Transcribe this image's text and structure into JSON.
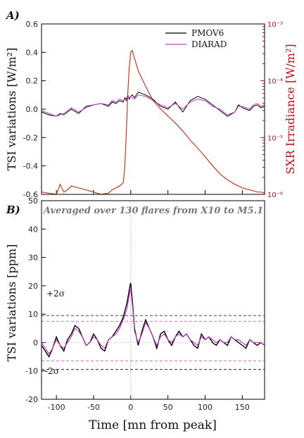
{
  "chart_data": [
    {
      "panel_label": "A)",
      "type": "line",
      "x": [
        -120,
        -110,
        -100,
        -95,
        -90,
        -85,
        -80,
        -70,
        -60,
        -50,
        -40,
        -30,
        -25,
        -20,
        -15,
        -10,
        -8,
        -6,
        -4,
        -2,
        0,
        2,
        5,
        10,
        20,
        30,
        40,
        50,
        60,
        70,
        80,
        90,
        100,
        110,
        120,
        130,
        140,
        145,
        150,
        155,
        160,
        165,
        170,
        175,
        180
      ],
      "series": [
        {
          "name": "PMOV6",
          "axis": "left",
          "color": "#000000",
          "values": [
            -0.02,
            -0.04,
            -0.05,
            -0.03,
            -0.04,
            -0.02,
            0.0,
            -0.03,
            0.02,
            0.03,
            0.04,
            0.02,
            0.05,
            0.04,
            0.06,
            0.05,
            0.08,
            0.06,
            0.1,
            0.07,
            0.09,
            0.1,
            0.08,
            0.12,
            0.1,
            0.07,
            0.02,
            0.0,
            0.05,
            -0.02,
            0.06,
            0.09,
            0.07,
            0.03,
            -0.01,
            -0.05,
            -0.02,
            0.03,
            0.01,
            0.0,
            -0.01,
            0.02,
            0.03,
            0.01,
            0.02
          ]
        },
        {
          "name": "DIARAD",
          "axis": "left",
          "color": "#c040c0",
          "values": [
            -0.01,
            -0.03,
            -0.05,
            -0.04,
            -0.03,
            -0.01,
            0.01,
            -0.02,
            0.01,
            0.03,
            0.04,
            0.03,
            0.06,
            0.05,
            0.07,
            0.06,
            0.07,
            0.08,
            0.09,
            0.08,
            0.09,
            0.08,
            0.07,
            0.1,
            0.09,
            0.06,
            0.03,
            0.01,
            0.04,
            0.0,
            0.05,
            0.07,
            0.06,
            0.02,
            0.0,
            -0.04,
            -0.02,
            0.02,
            0.02,
            0.01,
            0.0,
            0.03,
            0.04,
            0.02,
            0.03
          ]
        },
        {
          "name": "",
          "axis": "right",
          "color": "#c0392b",
          "values": [
            1.1e-06,
            1.05e-06,
            1e-06,
            1.5e-06,
            1.1e-06,
            1.2e-06,
            1.4e-06,
            1.3e-06,
            1.2e-06,
            1.1e-06,
            1e-06,
            1.05e-06,
            1.2e-06,
            1.3e-06,
            1.4e-06,
            1.6e-06,
            3e-06,
            1.2e-05,
            6e-05,
            0.00017,
            0.00032,
            0.00034,
            0.00025,
            0.00015,
            8e-05,
            4.5e-05,
            3.2e-05,
            2.4e-05,
            1.8e-05,
            1.3e-05,
            9e-06,
            6.5e-06,
            4.6e-06,
            3.2e-06,
            2.3e-06,
            1.8e-06,
            1.5e-06,
            1.4e-06,
            1.3e-06,
            1.25e-06,
            1.2e-06,
            1.15e-06,
            1.1e-06,
            1.1e-06,
            1.05e-06
          ]
        }
      ],
      "xlim": [
        -120,
        180
      ],
      "ylim": [
        -0.6,
        0.6
      ],
      "y2lim": [
        1e-06,
        0.001
      ],
      "y2scale": "log",
      "yticks": [
        "-0.6",
        "-0.4",
        "-0.2",
        "0.0",
        "0.2",
        "0.4",
        "0.6"
      ],
      "y2ticks": [
        "10⁻⁶",
        "10⁻⁵",
        "10⁻⁴",
        "10⁻³"
      ],
      "ylabel": "TSI variations [W/m²]",
      "y2label": "SXR Irradiance [W/m²]",
      "legend": [
        "PMOV6",
        "DIARAD"
      ],
      "legend_position": "top-right"
    },
    {
      "panel_label": "B)",
      "type": "line",
      "annotation": "Averaged over 130 flares from X10 to M5.1",
      "x": [
        -120,
        -115,
        -110,
        -105,
        -100,
        -95,
        -90,
        -85,
        -80,
        -75,
        -70,
        -65,
        -60,
        -55,
        -50,
        -45,
        -40,
        -35,
        -30,
        -25,
        -20,
        -15,
        -10,
        -5,
        -3,
        -1,
        0,
        1,
        3,
        5,
        10,
        15,
        20,
        25,
        30,
        35,
        40,
        45,
        50,
        55,
        60,
        65,
        70,
        75,
        80,
        85,
        90,
        95,
        100,
        105,
        110,
        115,
        120,
        125,
        130,
        135,
        140,
        145,
        150,
        155,
        160,
        165,
        170,
        175,
        180
      ],
      "series": [
        {
          "name": "PMOV6",
          "color": "#000000",
          "values": [
            -1,
            -3,
            -5,
            -2,
            2,
            -1,
            -3,
            1,
            3,
            6,
            5,
            2,
            -1,
            0,
            3,
            1,
            -2,
            -3,
            1,
            2,
            4,
            6,
            9,
            14,
            17,
            20,
            21,
            18,
            12,
            5,
            -1,
            4,
            8,
            5,
            2,
            -2,
            3,
            4,
            1,
            -1,
            2,
            4,
            2,
            3,
            1,
            -1,
            -2,
            3,
            1,
            2,
            0,
            -1,
            1,
            0,
            -1,
            2,
            1,
            0,
            -1,
            -2,
            1,
            0,
            -1,
            0,
            -1
          ]
        },
        {
          "name": "DIARAD",
          "color": "#c040c0",
          "values": [
            0,
            -2,
            -4,
            -2,
            1,
            -1,
            -2,
            0,
            2,
            5,
            4,
            2,
            -1,
            0,
            2,
            1,
            -1,
            -2,
            1,
            2,
            3,
            5,
            8,
            12,
            15,
            18,
            19,
            16,
            11,
            4,
            0,
            3,
            7,
            5,
            2,
            -1,
            2,
            3,
            1,
            0,
            2,
            3,
            2,
            3,
            1,
            0,
            -1,
            2,
            1,
            2,
            1,
            0,
            1,
            0,
            0,
            2,
            1,
            1,
            0,
            -1,
            1,
            0,
            0,
            0,
            -1
          ]
        }
      ],
      "xlim": [
        -120,
        180
      ],
      "ylim": [
        -20,
        50
      ],
      "xticks": [
        "-100",
        "-50",
        "0",
        "50",
        "100",
        "150"
      ],
      "yticks": [
        "-20",
        "-10",
        "0",
        "10",
        "20",
        "30",
        "40",
        "50"
      ],
      "sigma_lines": {
        "labels": [
          "+2σ",
          "-2σ"
        ],
        "black_ppm": [
          9.5,
          -9.5
        ],
        "magenta_ppm": [
          7.5,
          -6.5
        ]
      },
      "xlabel": "Time [mn from peak]",
      "ylabel": "TSI variations [ppm]"
    }
  ]
}
